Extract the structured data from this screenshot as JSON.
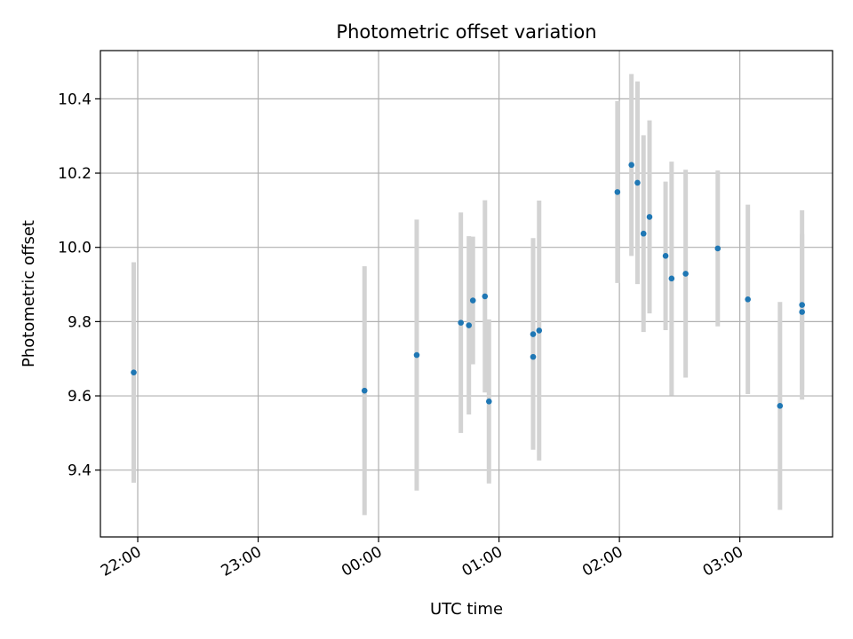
{
  "chart_data": {
    "type": "scatter",
    "title": "Photometric offset variation",
    "xlabel": "UTC time",
    "ylabel": "Photometric offset",
    "x_tick_labels": [
      "22:00",
      "23:00",
      "00:00",
      "01:00",
      "02:00",
      "03:00"
    ],
    "x_ticks_hours": [
      22,
      23,
      24,
      25,
      26,
      27
    ],
    "xlim_hours": [
      21.69,
      27.77
    ],
    "y_ticks": [
      9.4,
      9.6,
      9.8,
      10.0,
      10.2,
      10.4
    ],
    "y_tick_labels": [
      "9.4",
      "9.6",
      "9.8",
      "10.0",
      "10.2",
      "10.4"
    ],
    "ylim": [
      9.22,
      10.53
    ],
    "grid": true,
    "marker_color": "#1f77b4",
    "errorbar_color": "#d3d3d3",
    "series": [
      {
        "points": [
          {
            "time": "21:58",
            "y": 9.663,
            "err": 0.297
          },
          {
            "time": "23:53",
            "y": 9.614,
            "err": 0.335
          },
          {
            "time": "00:19",
            "y": 9.71,
            "err": 0.365
          },
          {
            "time": "00:41",
            "y": 9.797,
            "err": 0.297
          },
          {
            "time": "00:45",
            "y": 9.79,
            "err": 0.24
          },
          {
            "time": "00:47",
            "y": 9.857,
            "err": 0.172
          },
          {
            "time": "00:53",
            "y": 9.868,
            "err": 0.259
          },
          {
            "time": "00:55",
            "y": 9.585,
            "err": 0.221
          },
          {
            "time": "01:17",
            "y": 9.705,
            "err": 0.25
          },
          {
            "time": "01:17",
            "y": 9.766,
            "err": 0.259
          },
          {
            "time": "01:20",
            "y": 9.776,
            "err": 0.35
          },
          {
            "time": "01:59",
            "y": 10.149,
            "err": 0.245
          },
          {
            "time": "02:06",
            "y": 10.222,
            "err": 0.245
          },
          {
            "time": "02:09",
            "y": 10.174,
            "err": 0.273
          },
          {
            "time": "02:12",
            "y": 10.037,
            "err": 0.265
          },
          {
            "time": "02:15",
            "y": 10.082,
            "err": 0.26
          },
          {
            "time": "02:23",
            "y": 9.977,
            "err": 0.2
          },
          {
            "time": "02:26",
            "y": 9.916,
            "err": 0.315
          },
          {
            "time": "02:33",
            "y": 9.929,
            "err": 0.28
          },
          {
            "time": "02:49",
            "y": 9.997,
            "err": 0.21
          },
          {
            "time": "03:04",
            "y": 9.86,
            "err": 0.255
          },
          {
            "time": "03:20",
            "y": 9.573,
            "err": 0.28
          },
          {
            "time": "03:31",
            "y": 9.826,
            "err": 0.21
          },
          {
            "time": "03:31",
            "y": 9.845,
            "err": 0.255
          }
        ]
      }
    ]
  }
}
